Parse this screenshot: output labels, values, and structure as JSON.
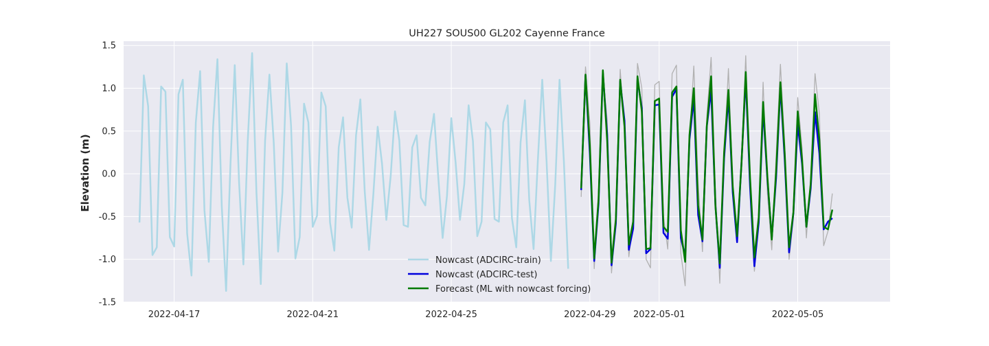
{
  "chart_data": {
    "type": "line",
    "title": "UH227 SOUS00 GL202 Cayenne France",
    "xlabel": "",
    "ylabel": "Elevation (m)",
    "x_type": "datetime",
    "xlim": [
      "2022-04-15T13:00",
      "2022-05-07T16:00"
    ],
    "ylim": [
      -1.5,
      1.55
    ],
    "xticks": [
      "2022-04-17",
      "2022-04-21",
      "2022-04-25",
      "2022-04-29",
      "2022-05-01",
      "2022-05-05"
    ],
    "yticks": [
      -1.5,
      -1.0,
      -0.5,
      0.0,
      0.5,
      1.0,
      1.5
    ],
    "grid": true,
    "legend_position": "lower-center",
    "background_color": "#e9e9f1",
    "series": [
      {
        "name": "Nowcast (ADCIRC-train)",
        "color": "#add8e6",
        "start": "2022-04-16T00:00",
        "step_hours": 3,
        "values": [
          -0.57,
          1.15,
          0.79,
          -0.95,
          -0.86,
          1.02,
          0.96,
          -0.74,
          -0.85,
          0.93,
          1.1,
          -0.7,
          -1.19,
          0.6,
          1.2,
          -0.43,
          -1.03,
          0.55,
          1.34,
          -0.38,
          -1.37,
          0.1,
          1.27,
          -0.1,
          -1.06,
          0.38,
          1.41,
          -0.22,
          -1.29,
          0.39,
          1.16,
          0.36,
          -0.91,
          -0.22,
          1.29,
          0.56,
          -0.99,
          -0.74,
          0.82,
          0.6,
          -0.62,
          -0.49,
          0.95,
          0.79,
          -0.57,
          -0.9,
          0.31,
          0.66,
          -0.28,
          -0.63,
          0.45,
          0.87,
          -0.2,
          -0.89,
          -0.24,
          0.55,
          0.12,
          -0.54,
          -0.03,
          0.73,
          0.39,
          -0.6,
          -0.62,
          0.31,
          0.45,
          -0.28,
          -0.37,
          0.37,
          0.7,
          -0.05,
          -0.75,
          -0.26,
          0.65,
          0.13,
          -0.54,
          -0.12,
          0.8,
          0.38,
          -0.73,
          -0.56,
          0.6,
          0.52,
          -0.53,
          -0.56,
          0.6,
          0.8,
          -0.52,
          -0.86,
          0.37,
          0.86,
          -0.31,
          -0.88,
          0.17,
          1.1,
          0.15,
          -1.02,
          -0.13,
          1.1,
          0.15,
          -1.11
        ]
      },
      {
        "name": "",
        "color": "#b0b0b0",
        "start": "2022-04-28T18:00",
        "step_hours": 3,
        "values": [
          -0.27,
          1.25,
          0.6,
          -1.11,
          -0.2,
          1.18,
          0.62,
          -1.16,
          -0.5,
          1.22,
          0.5,
          -0.97,
          -0.55,
          1.29,
          1.0,
          -1.0,
          -1.1,
          1.04,
          1.08,
          -0.5,
          -0.88,
          1.17,
          1.27,
          -0.93,
          -1.31,
          0.38,
          1.26,
          -0.11,
          -0.91,
          0.66,
          1.36,
          -0.21,
          -1.28,
          0.23,
          1.23,
          -0.12,
          -0.79,
          0.12,
          1.38,
          -0.09,
          -1.14,
          -0.52,
          1.07,
          -0.23,
          -0.89,
          0.2,
          1.28,
          0.34,
          -1.0,
          -0.52,
          0.89,
          0.3,
          -0.75,
          -0.04,
          1.17,
          0.7,
          -0.84,
          -0.67,
          -0.23
        ]
      },
      {
        "name": "Nowcast (ADCIRC-test)",
        "color": "#0000dd",
        "start": "2022-04-28T18:00",
        "step_hours": 3,
        "values": [
          -0.19,
          1.15,
          0.24,
          -1.02,
          -0.35,
          1.18,
          0.45,
          -1.07,
          -0.58,
          1.08,
          0.62,
          -0.89,
          -0.64,
          1.1,
          0.77,
          -0.93,
          -0.88,
          0.8,
          0.81,
          -0.69,
          -0.76,
          0.9,
          0.99,
          -0.75,
          -0.96,
          0.4,
          0.88,
          -0.48,
          -0.79,
          0.55,
          0.98,
          -0.37,
          -1.1,
          0.18,
          0.9,
          -0.22,
          -0.8,
          0.11,
          1.12,
          -0.15,
          -1.08,
          -0.57,
          0.76,
          -0.07,
          -0.75,
          -0.05,
          1.02,
          0.16,
          -0.92,
          -0.46,
          0.58,
          0.12,
          -0.62,
          -0.17,
          0.72,
          0.24,
          -0.65,
          -0.56,
          -0.52
        ]
      },
      {
        "name": "Forecast (ML with nowcast forcing)",
        "color": "#007a00",
        "start": "2022-04-28T18:00",
        "step_hours": 3,
        "values": [
          -0.17,
          1.16,
          0.33,
          -0.99,
          -0.3,
          1.21,
          0.38,
          -1.04,
          -0.53,
          1.1,
          0.55,
          -0.83,
          -0.56,
          1.14,
          0.73,
          -0.88,
          -0.87,
          0.85,
          0.88,
          -0.62,
          -0.68,
          0.95,
          1.02,
          -0.66,
          -1.03,
          0.45,
          1.0,
          -0.37,
          -0.77,
          0.56,
          1.14,
          -0.38,
          -1.05,
          0.25,
          0.98,
          -0.15,
          -0.73,
          0.1,
          1.19,
          -0.05,
          -0.98,
          -0.51,
          0.84,
          -0.04,
          -0.77,
          0.02,
          1.07,
          0.23,
          -0.86,
          -0.45,
          0.73,
          0.17,
          -0.62,
          -0.12,
          0.93,
          0.4,
          -0.62,
          -0.65,
          -0.42
        ]
      }
    ]
  }
}
